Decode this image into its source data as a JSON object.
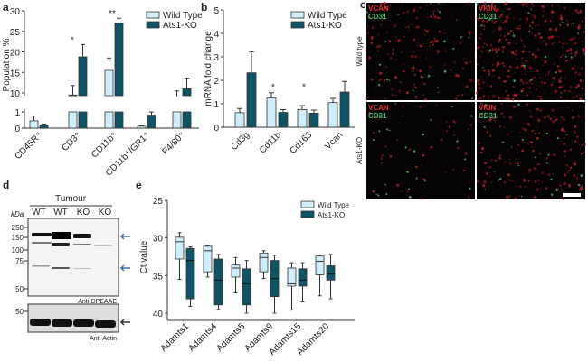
{
  "panel_labels": {
    "a": "a",
    "b": "b",
    "c": "c",
    "d": "d",
    "e": "e"
  },
  "colors": {
    "wild_type": "#cdeefa",
    "ko": "#0d5566",
    "stroke": "#333333",
    "arrow_blue": "#4a6fa5",
    "arrow_dark": "#333333"
  },
  "chart_data": [
    {
      "id": "a",
      "type": "bar",
      "ylabel": "Population %",
      "axis_break": [
        1,
        10
      ],
      "yticks_lower": [
        "0",
        "1"
      ],
      "yticks_upper": [
        "10",
        "15",
        "20",
        "25",
        "30"
      ],
      "ylim": [
        0,
        30
      ],
      "categories": [
        "CD45R⁺",
        "CD3⁺",
        "CD11b⁺",
        "CD11b⁺/GR1⁺",
        "F4/80⁺"
      ],
      "series": [
        {
          "name": "Wild Type",
          "values": [
            0.45,
            9.5,
            15.5,
            0.12,
            9.2
          ],
          "errors": [
            0.3,
            2.3,
            3.0,
            0.03,
            1.3
          ]
        },
        {
          "name": "Ats1-KO",
          "values": [
            0.2,
            18.8,
            27.0,
            0.8,
            11.0
          ],
          "errors": [
            0.05,
            3.0,
            1.2,
            0.2,
            2.6
          ]
        }
      ],
      "significance": [
        "",
        "*",
        "**",
        "",
        ""
      ]
    },
    {
      "id": "b",
      "type": "bar",
      "ylabel": "mRNA fold change",
      "ylim": [
        0,
        5
      ],
      "yticks": [
        "0",
        "1",
        "2",
        "3",
        "4",
        "5"
      ],
      "categories": [
        "Cd3g",
        "Cd11b",
        "Cd163",
        "Vcan"
      ],
      "series": [
        {
          "name": "Wild Type",
          "values": [
            0.62,
            1.25,
            0.75,
            1.05
          ],
          "errors": [
            0.18,
            0.22,
            0.17,
            0.18
          ]
        },
        {
          "name": "Ats1-KO",
          "values": [
            2.32,
            0.63,
            0.6,
            1.5
          ],
          "errors": [
            0.9,
            0.12,
            0.13,
            0.45
          ]
        }
      ],
      "significance": [
        "",
        "*",
        "*",
        ""
      ]
    },
    {
      "id": "e",
      "type": "box",
      "ylabel": "Ct value",
      "ylim": [
        25,
        40
      ],
      "y_reversed": true,
      "yticks": [
        "25",
        "30",
        "35",
        "40"
      ],
      "categories": [
        "Adamts1",
        "Adamts4",
        "Adamts5",
        "Adamts9",
        "Adamts15",
        "Adamts20"
      ],
      "series": [
        {
          "name": "Wild Type",
          "boxes": [
            [
              29.3,
              29.9,
              30.5,
              32.8,
              35.5
            ],
            [
              31.0,
              31.1,
              31.7,
              34.5,
              35.2
            ],
            [
              32.6,
              33.6,
              34.0,
              35.2,
              37.3
            ],
            [
              31.7,
              32.0,
              32.6,
              34.5,
              35.4
            ],
            [
              33.3,
              34.0,
              36.1,
              36.4,
              39.6
            ],
            [
              32.3,
              32.4,
              33.1,
              34.9,
              37.7
            ]
          ]
        },
        {
          "name": "Ats1-KO",
          "boxes": [
            [
              31.2,
              31.4,
              33.0,
              38.1,
              39.1
            ],
            [
              32.2,
              32.8,
              35.6,
              38.9,
              39.5
            ],
            [
              33.0,
              34.1,
              36.1,
              38.9,
              40.0
            ],
            [
              32.3,
              33.0,
              35.4,
              37.8,
              40.0
            ],
            [
              33.3,
              34.1,
              35.6,
              36.4,
              38.5
            ],
            [
              32.2,
              33.7,
              34.8,
              35.6,
              38.1
            ]
          ]
        }
      ]
    }
  ],
  "panel_c": {
    "row_labels": [
      "Wild type",
      "Ats1-KO"
    ],
    "stain_red": [
      "VCAN",
      "VKIN",
      "VCAN",
      "VKIN"
    ],
    "stain_green": "CD31"
  },
  "panel_d": {
    "group": "Tumour",
    "lanes": [
      "WT",
      "WT",
      "KO",
      "KO"
    ],
    "unit": "kDa",
    "markers": [
      "250",
      "150",
      "100",
      "75",
      "50"
    ],
    "antibody_top": "Anti-DPEAAE",
    "actin_marker": "50",
    "antibody_bottom": "Anti-Actin"
  }
}
